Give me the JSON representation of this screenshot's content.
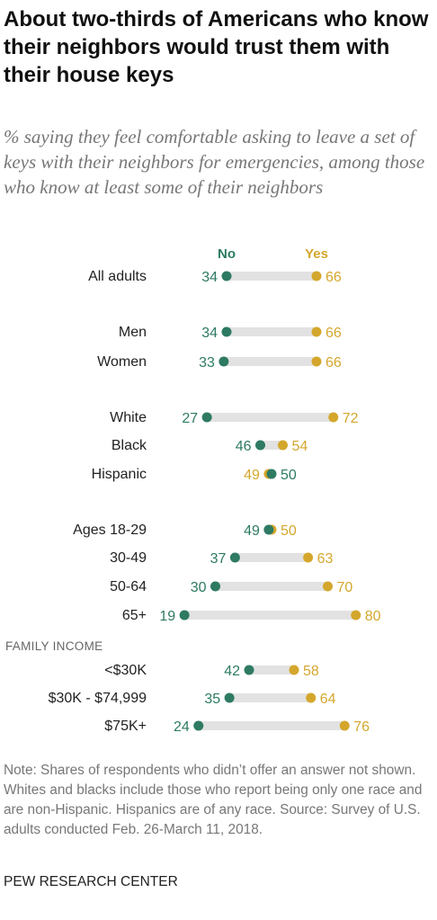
{
  "title": "About two-thirds of Americans who know their neighbors would trust them with their house keys",
  "subtitle": "% saying they feel comfortable asking to leave a set of keys with their neighbors for emergencies, among those who know at least some of their neighbors",
  "note": "Note: Shares of respondents who didn’t offer an answer not shown. Whites and blacks include those who report being only one race and are non-Hispanic. Hispanics are of any race. Source: Survey of U.S. adults conducted Feb. 26-March 11, 2018.",
  "source": "PEW RESEARCH CENTER",
  "colors": {
    "no": "#2e7a63",
    "yes": "#d4a72c",
    "bar": "#e2e2e2",
    "section": "#666666"
  },
  "chart_data": {
    "type": "dot",
    "series": [
      {
        "name": "No",
        "key": "no"
      },
      {
        "name": "Yes",
        "key": "yes"
      }
    ],
    "rows": [
      {
        "label": "All adults",
        "no": 34,
        "yes": 66
      },
      {
        "label": "Men",
        "no": 34,
        "yes": 66
      },
      {
        "label": "Women",
        "no": 33,
        "yes": 66
      },
      {
        "label": "White",
        "no": 27,
        "yes": 72
      },
      {
        "label": "Black",
        "no": 46,
        "yes": 54
      },
      {
        "label": "Hispanic",
        "no": 50,
        "yes": 49
      },
      {
        "label": "Ages 18-29",
        "no": 49,
        "yes": 50
      },
      {
        "label": "30-49",
        "no": 37,
        "yes": 63
      },
      {
        "label": "50-64",
        "no": 30,
        "yes": 70
      },
      {
        "label": "65+",
        "no": 19,
        "yes": 80
      },
      {
        "section": "FAMILY INCOME"
      },
      {
        "label": "<$30K",
        "no": 42,
        "yes": 58
      },
      {
        "label": "$30K - $74,999",
        "no": 35,
        "yes": 64
      },
      {
        "label": "$75K+",
        "no": 24,
        "yes": 76
      }
    ]
  }
}
